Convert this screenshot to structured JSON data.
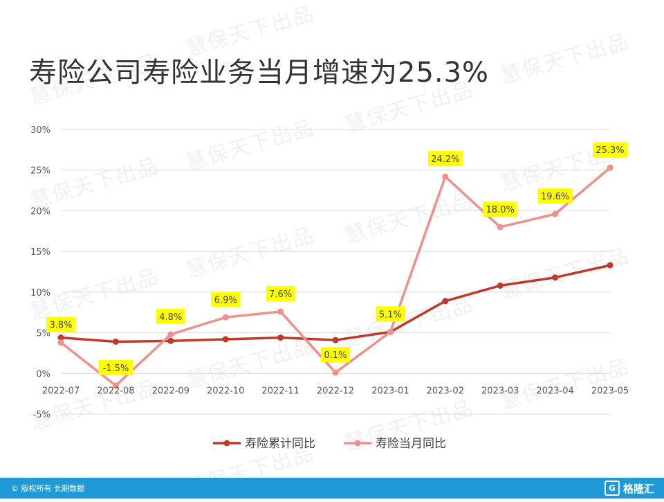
{
  "page_title": "寿险公司寿险业务当月增速为25.3%",
  "watermark_text": "慧保天下出品",
  "footer": {
    "copyright": "© 版权所有 长期数据",
    "brand": "格隆汇",
    "brand_icon_glyph": "G"
  },
  "colors": {
    "cumulative": "#c0392b",
    "monthly": "#f0908a",
    "label_bg": "#ffff00",
    "footer_bg": "#1f9ad9"
  },
  "chart_data": {
    "type": "line",
    "title": "寿险公司寿险业务当月增速为25.3%",
    "categories": [
      "2022-07",
      "2022-08",
      "2022-09",
      "2022-10",
      "2022-11",
      "2022-12",
      "2023-01",
      "2023-02",
      "2023-03",
      "2023-04",
      "2023-05"
    ],
    "y_ticks": [
      30,
      25,
      20,
      15,
      10,
      5,
      0,
      -5
    ],
    "y_tick_labels": [
      "30%",
      "25%",
      "20%",
      "15%",
      "10%",
      "5%",
      "0%",
      "-5%"
    ],
    "ylim": [
      -5,
      30
    ],
    "grid": true,
    "legend_position": "bottom",
    "series": [
      {
        "name": "寿险累计同比",
        "values": [
          4.4,
          3.9,
          4.0,
          4.2,
          4.4,
          4.1,
          5.1,
          8.9,
          10.8,
          11.8,
          13.3
        ],
        "data_labels": []
      },
      {
        "name": "寿险当月同比",
        "values": [
          3.8,
          -1.5,
          4.8,
          6.9,
          7.6,
          0.1,
          5.1,
          24.2,
          18.0,
          19.6,
          25.3
        ],
        "data_labels": [
          "3.8%",
          "-1.5%",
          "4.8%",
          "6.9%",
          "7.6%",
          "0.1%",
          "5.1%",
          "24.2%",
          "18.0%",
          "19.6%",
          "25.3%"
        ]
      }
    ]
  }
}
